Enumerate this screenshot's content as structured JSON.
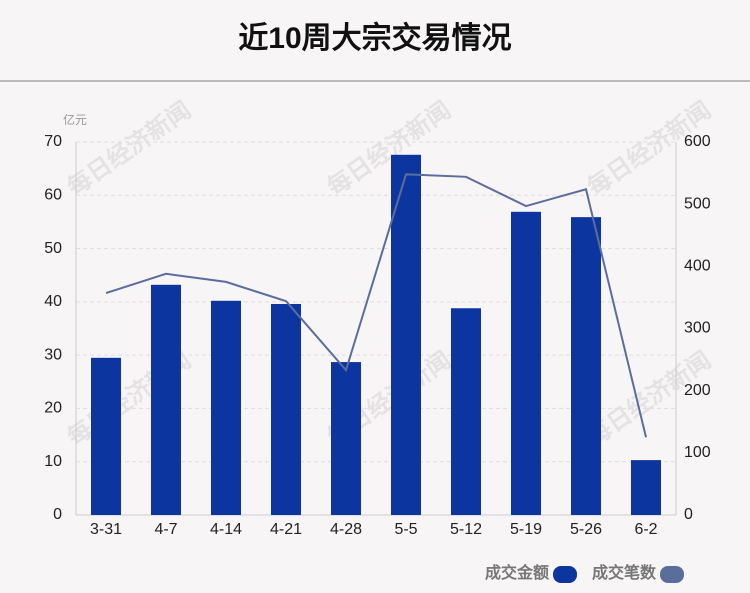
{
  "chart_data": {
    "type": "bar-line",
    "title": "近10周大宗交易情况",
    "y_unit": "亿元",
    "watermark": "每日经济新闻",
    "categories": [
      "3-31",
      "4-7",
      "4-14",
      "4-21",
      "4-28",
      "5-5",
      "5-12",
      "5-19",
      "5-26",
      "6-2"
    ],
    "series": [
      {
        "name": "成交金额",
        "type": "bar",
        "color": "#0d35a0",
        "values": [
          29.5,
          43.2,
          40.2,
          39.6,
          28.7,
          67.6,
          38.8,
          56.9,
          55.9,
          10.3
        ]
      },
      {
        "name": "成交笔数",
        "type": "line",
        "axis": "y2",
        "color": "#5a6e9c",
        "values": [
          357,
          388,
          375,
          344,
          233,
          548,
          544,
          497,
          524,
          125
        ]
      }
    ],
    "ylim": [
      0,
      70
    ],
    "yticks": [
      0,
      10,
      20,
      30,
      40,
      50,
      60,
      70
    ],
    "y2lim": [
      0,
      600
    ],
    "y2ticks": [
      0,
      100,
      200,
      300,
      400,
      500,
      600
    ],
    "grid": true
  }
}
